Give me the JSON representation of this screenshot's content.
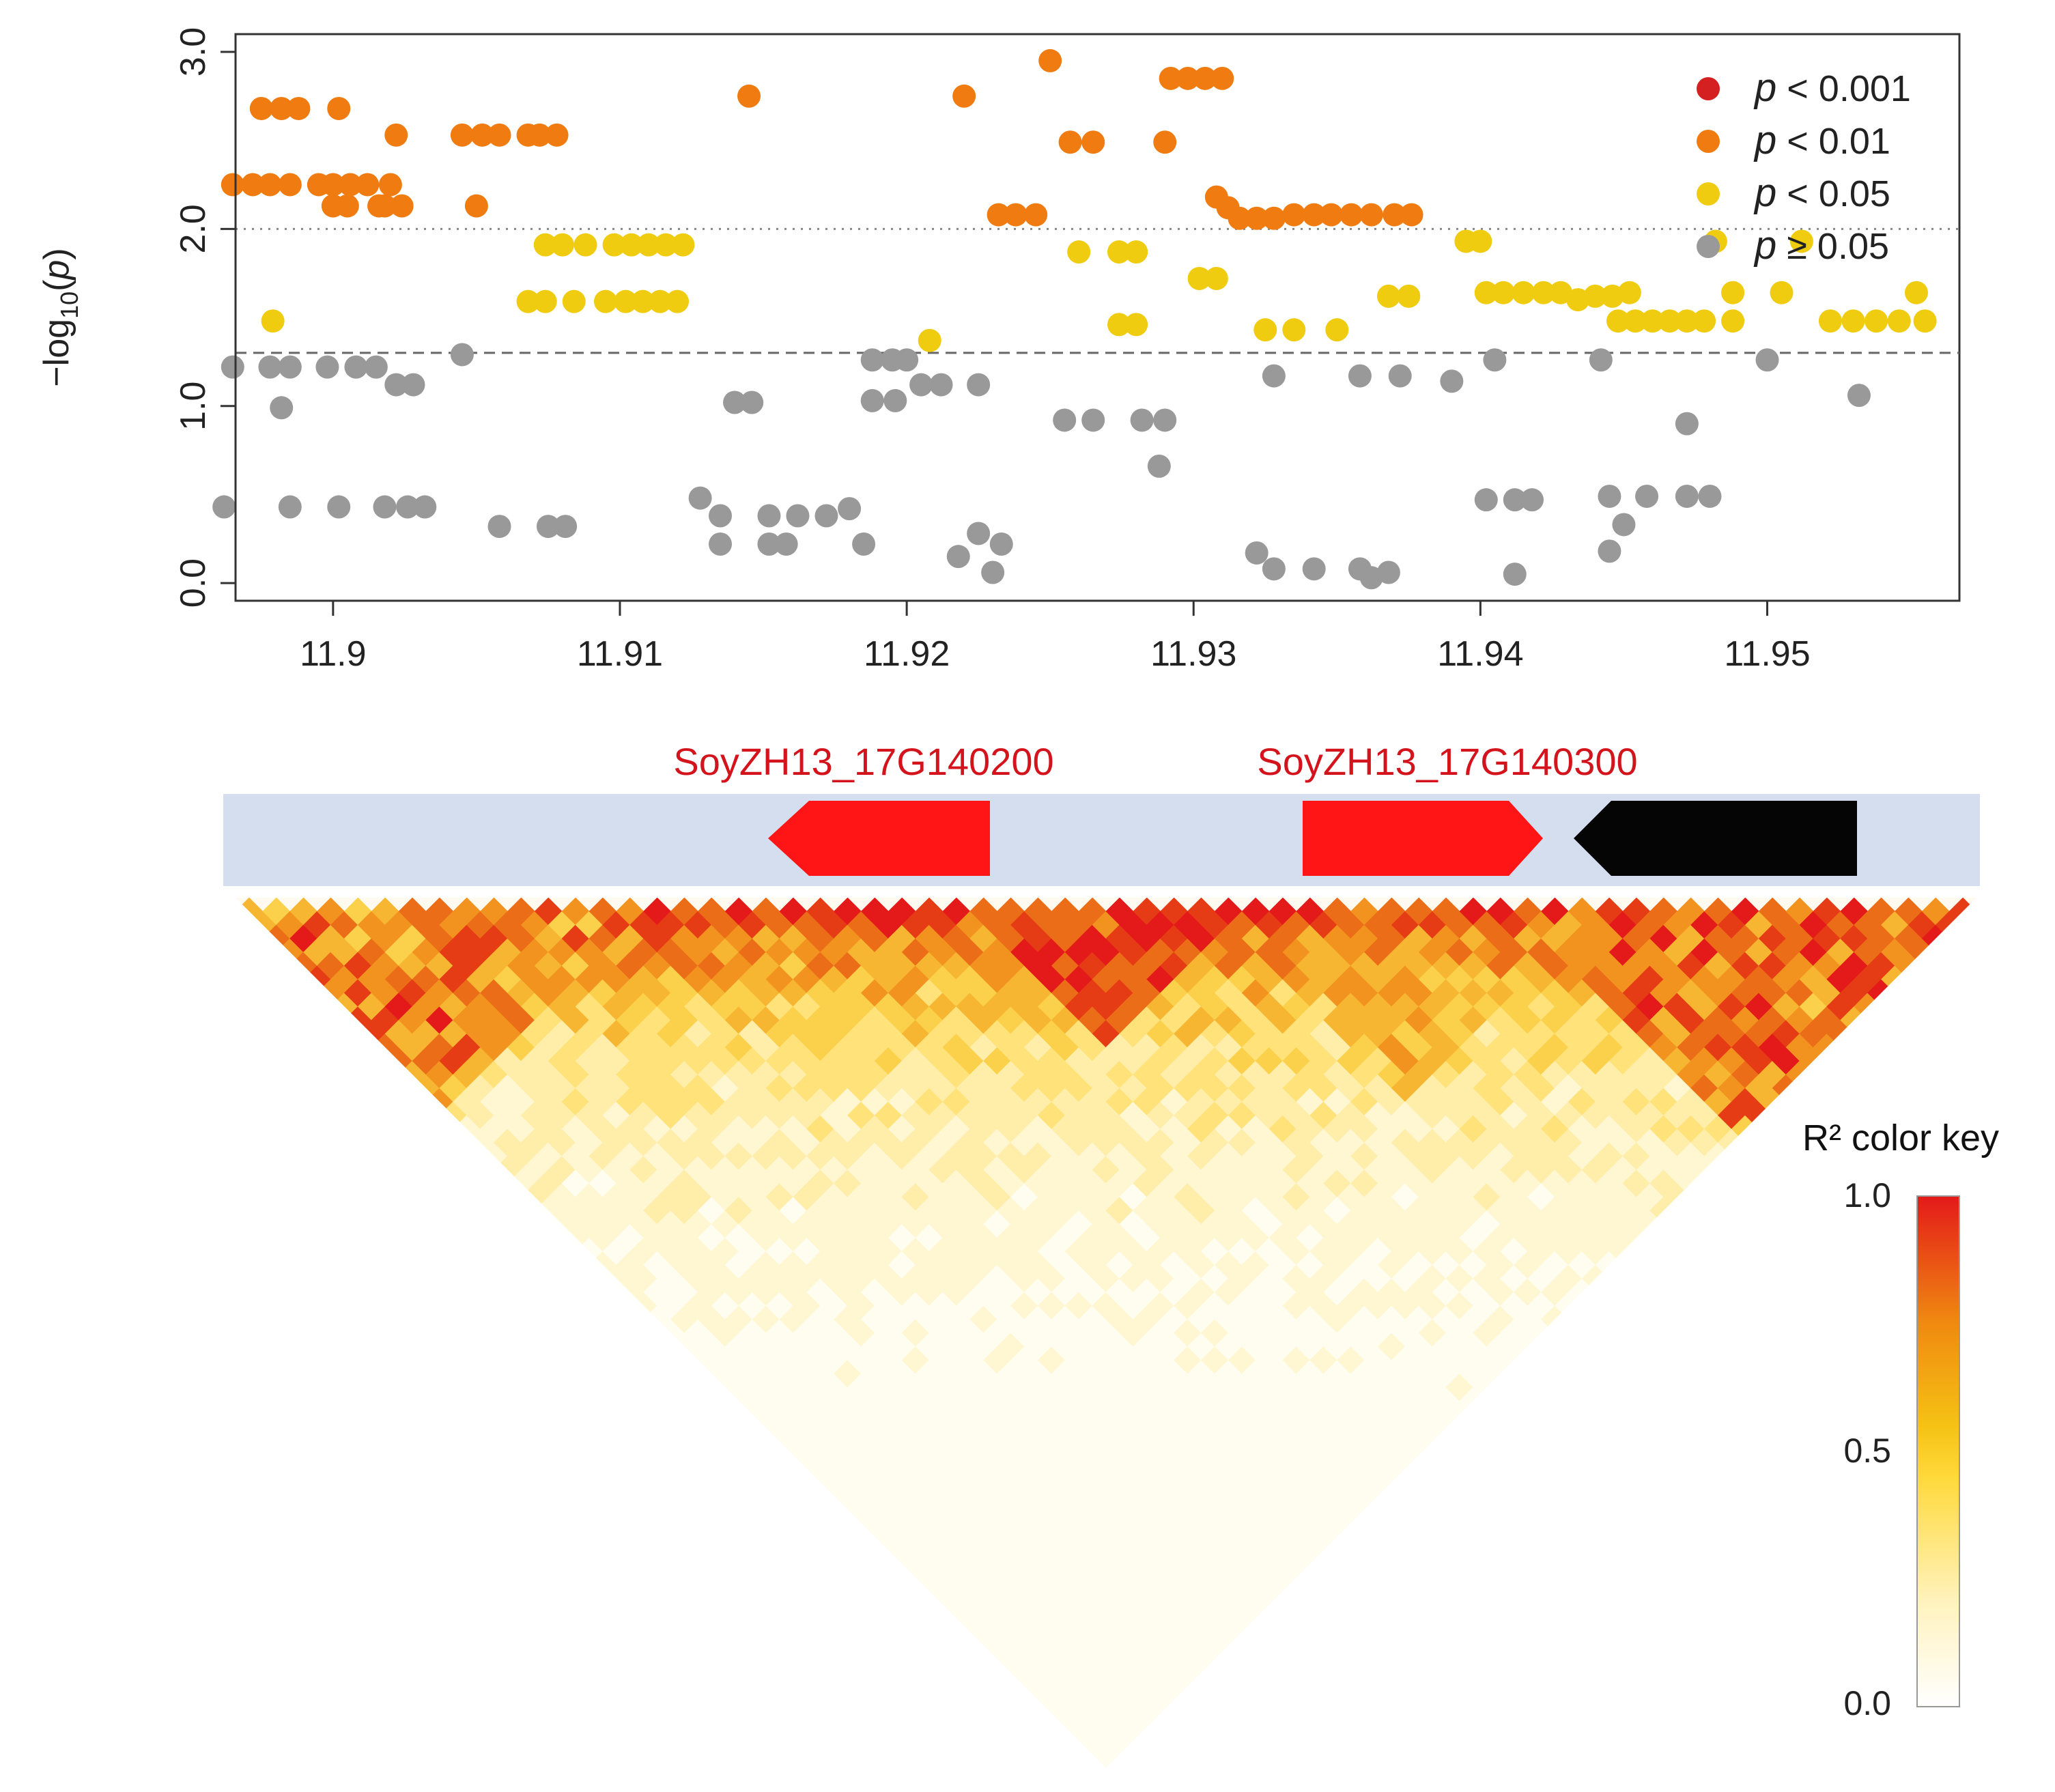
{
  "chart_data": [
    {
      "type": "scatter",
      "xlabel": "",
      "ylabel": "-log10(p)",
      "xlim": [
        11.8966,
        11.9567
      ],
      "ylim": [
        -0.1,
        3.1
      ],
      "x_ticks": [
        "11.9",
        "11.91",
        "11.92",
        "11.93",
        "11.94",
        "11.95"
      ],
      "y_ticks": [
        "0.0",
        "1.0",
        "2.0",
        "3.0"
      ],
      "x_tick_values": [
        11.9,
        11.91,
        11.92,
        11.93,
        11.94,
        11.95
      ],
      "y_tick_values": [
        0,
        1,
        2,
        3
      ],
      "threshold_lines": [
        {
          "y": 2.0,
          "style": "dotted"
        },
        {
          "y": 1.3,
          "style": "dashed"
        }
      ],
      "legend": {
        "placement": "top-right",
        "entries": [
          {
            "symbol": "p",
            "text": " < 0.001",
            "color": "#d42020"
          },
          {
            "symbol": "p",
            "text": " < 0.01",
            "color": "#f07b10"
          },
          {
            "symbol": "p",
            "text": " < 0.05",
            "color": "#f0cc10"
          },
          {
            "symbol": "p",
            "text": " ≥ 0.05",
            "color": "#999999"
          }
        ]
      },
      "series": [
        {
          "color": "#f07b10",
          "points": [
            [
              11.8965,
              2.25
            ],
            [
              11.8972,
              2.25
            ],
            [
              11.8978,
              2.25
            ],
            [
              11.8985,
              2.25
            ],
            [
              11.8975,
              2.68
            ],
            [
              11.8982,
              2.68
            ],
            [
              11.8988,
              2.68
            ],
            [
              11.9002,
              2.68
            ],
            [
              11.8995,
              2.25
            ],
            [
              11.9,
              2.25
            ],
            [
              11.9006,
              2.25
            ],
            [
              11.9012,
              2.25
            ],
            [
              11.9,
              2.13
            ],
            [
              11.9018,
              2.13
            ],
            [
              11.9024,
              2.13
            ],
            [
              11.902,
              2.25
            ],
            [
              11.9005,
              2.13
            ],
            [
              11.9016,
              2.13
            ],
            [
              11.9022,
              2.53
            ],
            [
              11.9045,
              2.53
            ],
            [
              11.9052,
              2.53
            ],
            [
              11.9058,
              2.53
            ],
            [
              11.9068,
              2.53
            ],
            [
              11.9072,
              2.53
            ],
            [
              11.9078,
              2.53
            ],
            [
              11.905,
              2.13
            ],
            [
              11.9145,
              2.75
            ],
            [
              11.922,
              2.75
            ],
            [
              11.925,
              2.95
            ],
            [
              11.9257,
              2.49
            ],
            [
              11.9265,
              2.49
            ],
            [
              11.929,
              2.49
            ],
            [
              11.9292,
              2.85
            ],
            [
              11.9298,
              2.85
            ],
            [
              11.9304,
              2.85
            ],
            [
              11.931,
              2.85
            ],
            [
              11.9232,
              2.08
            ],
            [
              11.9238,
              2.08
            ],
            [
              11.9245,
              2.08
            ],
            [
              11.9308,
              2.18
            ],
            [
              11.9312,
              2.12
            ],
            [
              11.9316,
              2.06
            ],
            [
              11.9322,
              2.06
            ],
            [
              11.9328,
              2.06
            ],
            [
              11.9335,
              2.08
            ],
            [
              11.9342,
              2.08
            ],
            [
              11.9348,
              2.08
            ],
            [
              11.9355,
              2.08
            ],
            [
              11.9362,
              2.08
            ],
            [
              11.937,
              2.08
            ],
            [
              11.9376,
              2.08
            ]
          ]
        },
        {
          "color": "#f0cc10",
          "points": [
            [
              11.8979,
              1.48
            ],
            [
              11.9068,
              1.59
            ],
            [
              11.9074,
              1.59
            ],
            [
              11.9084,
              1.59
            ],
            [
              11.9095,
              1.59
            ],
            [
              11.9102,
              1.59
            ],
            [
              11.9108,
              1.59
            ],
            [
              11.9114,
              1.59
            ],
            [
              11.912,
              1.59
            ],
            [
              11.9074,
              1.91
            ],
            [
              11.908,
              1.91
            ],
            [
              11.9088,
              1.91
            ],
            [
              11.9098,
              1.91
            ],
            [
              11.9104,
              1.91
            ],
            [
              11.911,
              1.91
            ],
            [
              11.9116,
              1.91
            ],
            [
              11.9122,
              1.91
            ],
            [
              11.9208,
              1.37
            ],
            [
              11.926,
              1.87
            ],
            [
              11.9274,
              1.87
            ],
            [
              11.928,
              1.87
            ],
            [
              11.9274,
              1.46
            ],
            [
              11.928,
              1.46
            ],
            [
              11.9302,
              1.72
            ],
            [
              11.9308,
              1.72
            ],
            [
              11.9325,
              1.43
            ],
            [
              11.9335,
              1.43
            ],
            [
              11.935,
              1.43
            ],
            [
              11.9368,
              1.62
            ],
            [
              11.9375,
              1.62
            ],
            [
              11.9395,
              1.93
            ],
            [
              11.94,
              1.93
            ],
            [
              11.9402,
              1.64
            ],
            [
              11.9408,
              1.64
            ],
            [
              11.9415,
              1.64
            ],
            [
              11.9422,
              1.64
            ],
            [
              11.9428,
              1.64
            ],
            [
              11.9434,
              1.6
            ],
            [
              11.944,
              1.62
            ],
            [
              11.9446,
              1.62
            ],
            [
              11.9448,
              1.48
            ],
            [
              11.9454,
              1.48
            ],
            [
              11.946,
              1.48
            ],
            [
              11.9466,
              1.48
            ],
            [
              11.9472,
              1.48
            ],
            [
              11.9478,
              1.48
            ],
            [
              11.9452,
              1.64
            ],
            [
              11.9482,
              1.93
            ],
            [
              11.9488,
              1.64
            ],
            [
              11.9488,
              1.48
            ],
            [
              11.9505,
              1.64
            ],
            [
              11.9512,
              1.93
            ],
            [
              11.9522,
              1.48
            ],
            [
              11.953,
              1.48
            ],
            [
              11.9538,
              1.48
            ],
            [
              11.9546,
              1.48
            ],
            [
              11.9552,
              1.64
            ],
            [
              11.9555,
              1.48
            ]
          ]
        },
        {
          "color": "#999999",
          "points": [
            [
              11.8965,
              1.22
            ],
            [
              11.8978,
              1.22
            ],
            [
              11.8985,
              1.22
            ],
            [
              11.8998,
              1.22
            ],
            [
              11.9008,
              1.22
            ],
            [
              11.9015,
              1.22
            ],
            [
              11.9022,
              1.12
            ],
            [
              11.9028,
              1.12
            ],
            [
              11.8982,
              0.99
            ],
            [
              11.9045,
              1.29
            ],
            [
              11.8962,
              0.43
            ],
            [
              11.8985,
              0.43
            ],
            [
              11.9002,
              0.43
            ],
            [
              11.9018,
              0.43
            ],
            [
              11.9026,
              0.43
            ],
            [
              11.9032,
              0.43
            ],
            [
              11.9058,
              0.32
            ],
            [
              11.9075,
              0.32
            ],
            [
              11.9081,
              0.32
            ],
            [
              11.9128,
              0.48
            ],
            [
              11.9135,
              0.22
            ],
            [
              11.9152,
              0.22
            ],
            [
              11.9158,
              0.22
            ],
            [
              11.9135,
              0.38
            ],
            [
              11.9152,
              0.38
            ],
            [
              11.9162,
              0.38
            ],
            [
              11.9172,
              0.38
            ],
            [
              11.918,
              0.42
            ],
            [
              11.9185,
              0.22
            ],
            [
              11.914,
              1.02
            ],
            [
              11.9146,
              1.02
            ],
            [
              11.9188,
              1.26
            ],
            [
              11.9195,
              1.26
            ],
            [
              11.92,
              1.26
            ],
            [
              11.9188,
              1.03
            ],
            [
              11.9196,
              1.03
            ],
            [
              11.9205,
              1.12
            ],
            [
              11.9212,
              1.12
            ],
            [
              11.9225,
              1.12
            ],
            [
              11.9218,
              0.15
            ],
            [
              11.9225,
              0.28
            ],
            [
              11.9233,
              0.22
            ],
            [
              11.923,
              0.06
            ],
            [
              11.9255,
              0.92
            ],
            [
              11.9265,
              0.92
            ],
            [
              11.9282,
              0.92
            ],
            [
              11.929,
              0.92
            ],
            [
              11.9288,
              0.66
            ],
            [
              11.9322,
              0.17
            ],
            [
              11.9328,
              0.08
            ],
            [
              11.9342,
              0.08
            ],
            [
              11.9358,
              0.08
            ],
            [
              11.9362,
              0.03
            ],
            [
              11.9368,
              0.06
            ],
            [
              11.9328,
              1.17
            ],
            [
              11.9358,
              1.17
            ],
            [
              11.9372,
              1.17
            ],
            [
              11.939,
              1.14
            ],
            [
              11.9405,
              1.26
            ],
            [
              11.9402,
              0.47
            ],
            [
              11.9412,
              0.47
            ],
            [
              11.9418,
              0.47
            ],
            [
              11.9412,
              0.05
            ],
            [
              11.9445,
              0.49
            ],
            [
              11.9458,
              0.49
            ],
            [
              11.9472,
              0.49
            ],
            [
              11.948,
              0.49
            ],
            [
              11.9445,
              0.18
            ],
            [
              11.945,
              0.33
            ],
            [
              11.9442,
              1.26
            ],
            [
              11.9472,
              0.9
            ],
            [
              11.95,
              1.26
            ],
            [
              11.9532,
              1.06
            ]
          ]
        }
      ]
    },
    {
      "type": "heatmap",
      "title": "",
      "genes": [
        {
          "label": "SoyZH13_17G140200",
          "direction": "left",
          "color": "#ff1515"
        },
        {
          "label": "SoyZH13_17G140300",
          "direction": "right",
          "color": "#ff1515"
        },
        {
          "label": "",
          "direction": "left",
          "color": "#050505"
        }
      ],
      "color_key": {
        "title": "R² color key",
        "ticks": [
          "1.0",
          "0.5",
          "0.0"
        ],
        "tick_values": [
          1.0,
          0.5,
          0.0
        ],
        "stops": [
          "#ffffff",
          "#ffe070",
          "#f0cc10",
          "#f07b10",
          "#e41a1a"
        ]
      }
    }
  ]
}
